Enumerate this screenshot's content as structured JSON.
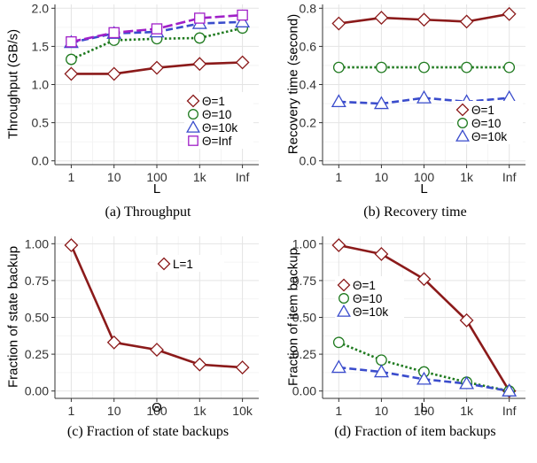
{
  "colors": {
    "series1": "#8b1a1a",
    "series2": "#1f7a1f",
    "series3": "#3a4ccc",
    "series4": "#a020c8"
  },
  "chart_data": [
    {
      "id": "a",
      "type": "line",
      "caption": "(a) Throughput",
      "xlabel": "L",
      "ylabel": "Throughput (GB/s)",
      "categories": [
        "1",
        "10",
        "100",
        "1k",
        "Inf"
      ],
      "ylim": [
        -0.05,
        2.05
      ],
      "yticks": [
        0.0,
        0.5,
        1.0,
        1.5,
        2.0
      ],
      "ytick_labels": [
        "0.0",
        "0.5",
        "1.0",
        "1.5",
        "2.0"
      ],
      "legend": "bottom-right",
      "series": [
        {
          "name": "Θ=1",
          "marker": "diamond",
          "line": "solid",
          "color": "#8b1a1a",
          "values": [
            1.14,
            1.14,
            1.22,
            1.27,
            1.29
          ]
        },
        {
          "name": "Θ=10",
          "marker": "circle",
          "line": "dotted",
          "color": "#1f7a1f",
          "values": [
            1.33,
            1.58,
            1.6,
            1.61,
            1.74
          ]
        },
        {
          "name": "Θ=10k",
          "marker": "triangle",
          "line": "dashed",
          "color": "#3a4ccc",
          "values": [
            1.55,
            1.67,
            1.69,
            1.8,
            1.82
          ]
        },
        {
          "name": "Θ=Inf",
          "marker": "square",
          "line": "longdash",
          "color": "#a020c8",
          "values": [
            1.56,
            1.68,
            1.73,
            1.87,
            1.91
          ]
        }
      ]
    },
    {
      "id": "b",
      "type": "line",
      "caption": "(b) Recovery time",
      "xlabel": "L",
      "ylabel": "Recovery time (second)",
      "categories": [
        "1",
        "10",
        "100",
        "1k",
        "Inf"
      ],
      "ylim": [
        -0.02,
        0.82
      ],
      "yticks": [
        0.0,
        0.2,
        0.4,
        0.6,
        0.8
      ],
      "ytick_labels": [
        "0.0",
        "0.2",
        "0.4",
        "0.6",
        "0.8"
      ],
      "legend": "bottom-right",
      "series": [
        {
          "name": "Θ=1",
          "marker": "diamond",
          "line": "solid",
          "color": "#8b1a1a",
          "values": [
            0.72,
            0.75,
            0.74,
            0.73,
            0.77
          ]
        },
        {
          "name": "Θ=10",
          "marker": "circle",
          "line": "dotted",
          "color": "#1f7a1f",
          "values": [
            0.49,
            0.49,
            0.49,
            0.49,
            0.49
          ]
        },
        {
          "name": "Θ=10k",
          "marker": "triangle",
          "line": "dashed",
          "color": "#3a4ccc",
          "values": [
            0.31,
            0.3,
            0.33,
            0.31,
            0.33
          ]
        }
      ]
    },
    {
      "id": "c",
      "type": "line",
      "caption": "(c) Fraction of state backups",
      "xlabel": "Θ",
      "ylabel": "Fraction of state backup",
      "categories": [
        "1",
        "10",
        "100",
        "1k",
        "10k"
      ],
      "ylim": [
        -0.05,
        1.05
      ],
      "yticks": [
        0.0,
        0.25,
        0.5,
        0.75,
        1.0
      ],
      "ytick_labels": [
        "0.00",
        "0.25",
        "0.50",
        "0.75",
        "1.00"
      ],
      "legend": "top-right",
      "series": [
        {
          "name": "L=1",
          "marker": "diamond",
          "line": "solid",
          "color": "#8b1a1a",
          "values": [
            0.99,
            0.33,
            0.28,
            0.18,
            0.16
          ]
        }
      ]
    },
    {
      "id": "d",
      "type": "line",
      "caption": "(d) Fraction of item backups",
      "xlabel": "L",
      "ylabel": "Fraction of item backup",
      "categories": [
        "1",
        "10",
        "100",
        "1k",
        "Inf"
      ],
      "ylim": [
        -0.05,
        1.05
      ],
      "yticks": [
        0.0,
        0.25,
        0.5,
        0.75,
        1.0
      ],
      "ytick_labels": [
        "0.00",
        "0.25",
        "0.50",
        "0.75",
        "1.00"
      ],
      "legend": "center-left",
      "series": [
        {
          "name": "Θ=1",
          "marker": "diamond",
          "line": "solid",
          "color": "#8b1a1a",
          "values": [
            0.99,
            0.93,
            0.76,
            0.48,
            0.0
          ]
        },
        {
          "name": "Θ=10",
          "marker": "circle",
          "line": "dotted",
          "color": "#1f7a1f",
          "values": [
            0.33,
            0.21,
            0.13,
            0.06,
            0.0
          ]
        },
        {
          "name": "Θ=10k",
          "marker": "triangle",
          "line": "dashed",
          "color": "#3a4ccc",
          "values": [
            0.16,
            0.13,
            0.08,
            0.05,
            0.0
          ]
        }
      ]
    }
  ]
}
